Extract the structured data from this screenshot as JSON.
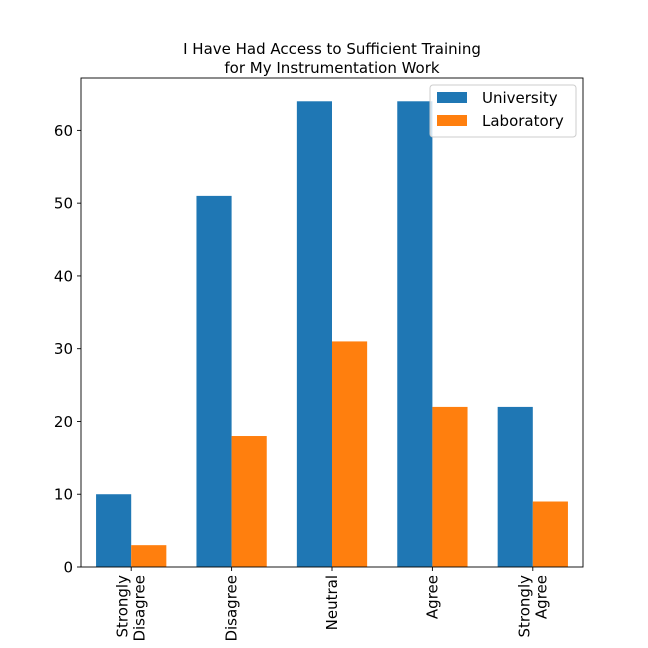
{
  "chart_data": {
    "type": "bar",
    "title_lines": [
      "I Have Had Access to Sufficient Training",
      "for My Instrumentation Work"
    ],
    "categories": [
      [
        "Strongly",
        "Disagree"
      ],
      [
        "Disagree"
      ],
      [
        "Neutral"
      ],
      [
        "Agree"
      ],
      [
        "Strongly",
        "Agree"
      ]
    ],
    "series": [
      {
        "name": "University",
        "color": "#1f77b4",
        "values": [
          10,
          51,
          64,
          64,
          22
        ]
      },
      {
        "name": "Laboratory",
        "color": "#ff7f0e",
        "values": [
          3,
          18,
          31,
          22,
          9
        ]
      }
    ],
    "ylim": [
      0,
      67.2
    ],
    "yticks": [
      0,
      10,
      20,
      30,
      40,
      50,
      60
    ],
    "xlabel": "",
    "ylabel": "",
    "grid": false,
    "legend": "top-right"
  }
}
